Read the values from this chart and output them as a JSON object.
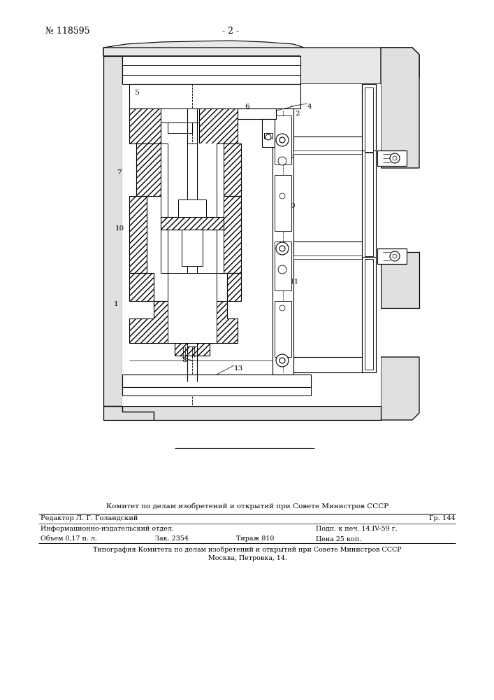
{
  "patent_number": "№ 118595",
  "page_number": "- 2 -",
  "bg_color": "#ffffff",
  "footer_title": "Комитет по делам изобретений и открытий при Совете Министров СССР",
  "editor": "Редактор Л. Г. Голандский",
  "gr": "Гр. 144",
  "info1": "Информационно-издательский отдел.",
  "podp": "Подп. к печ. 14.IV-59 г.",
  "obem": "Объем 0,17 п. л.",
  "zak": "Зак. 2354",
  "tirazh": "Тираж 810",
  "tsena": "Цена 25 коп.",
  "tipograf": "Типография Комитета по делам изобретений и открытий при Совете Министров СССР",
  "moskva": "Москва, Петровка, 14."
}
